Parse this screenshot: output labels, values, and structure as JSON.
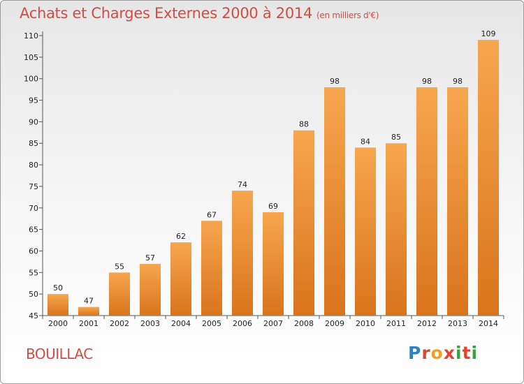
{
  "header": {
    "title": "Achats et Charges Externes 2000 à 2014",
    "unit": "(en milliers d'€)"
  },
  "footer": {
    "commune": "BOUILLAC",
    "brand": "Proxiti"
  },
  "colors": {
    "bar_light": "#f7a64e",
    "bar_dark": "#d9741c",
    "title": "#d24c44",
    "brand_letters": [
      "#2f7fc4",
      "#e0452f",
      "#f0a020",
      "#e0452f",
      "#3aa040",
      "#e0452f",
      "#3aa040"
    ]
  },
  "chart_data": {
    "type": "bar",
    "title": "Achats et Charges Externes 2000 à 2014",
    "subtitle": "(en milliers d'€)",
    "xlabel": "",
    "ylabel": "",
    "categories": [
      "2000",
      "2001",
      "2002",
      "2003",
      "2004",
      "2005",
      "2006",
      "2007",
      "2008",
      "2009",
      "2010",
      "2011",
      "2012",
      "2013",
      "2014"
    ],
    "values": [
      50,
      47,
      55,
      57,
      62,
      67,
      74,
      69,
      88,
      98,
      84,
      85,
      98,
      98,
      109
    ],
    "ylim": [
      45,
      110
    ],
    "yticks": [
      45,
      50,
      55,
      60,
      65,
      70,
      75,
      80,
      85,
      90,
      95,
      100,
      105,
      110
    ],
    "grid": false,
    "legend": "none"
  }
}
